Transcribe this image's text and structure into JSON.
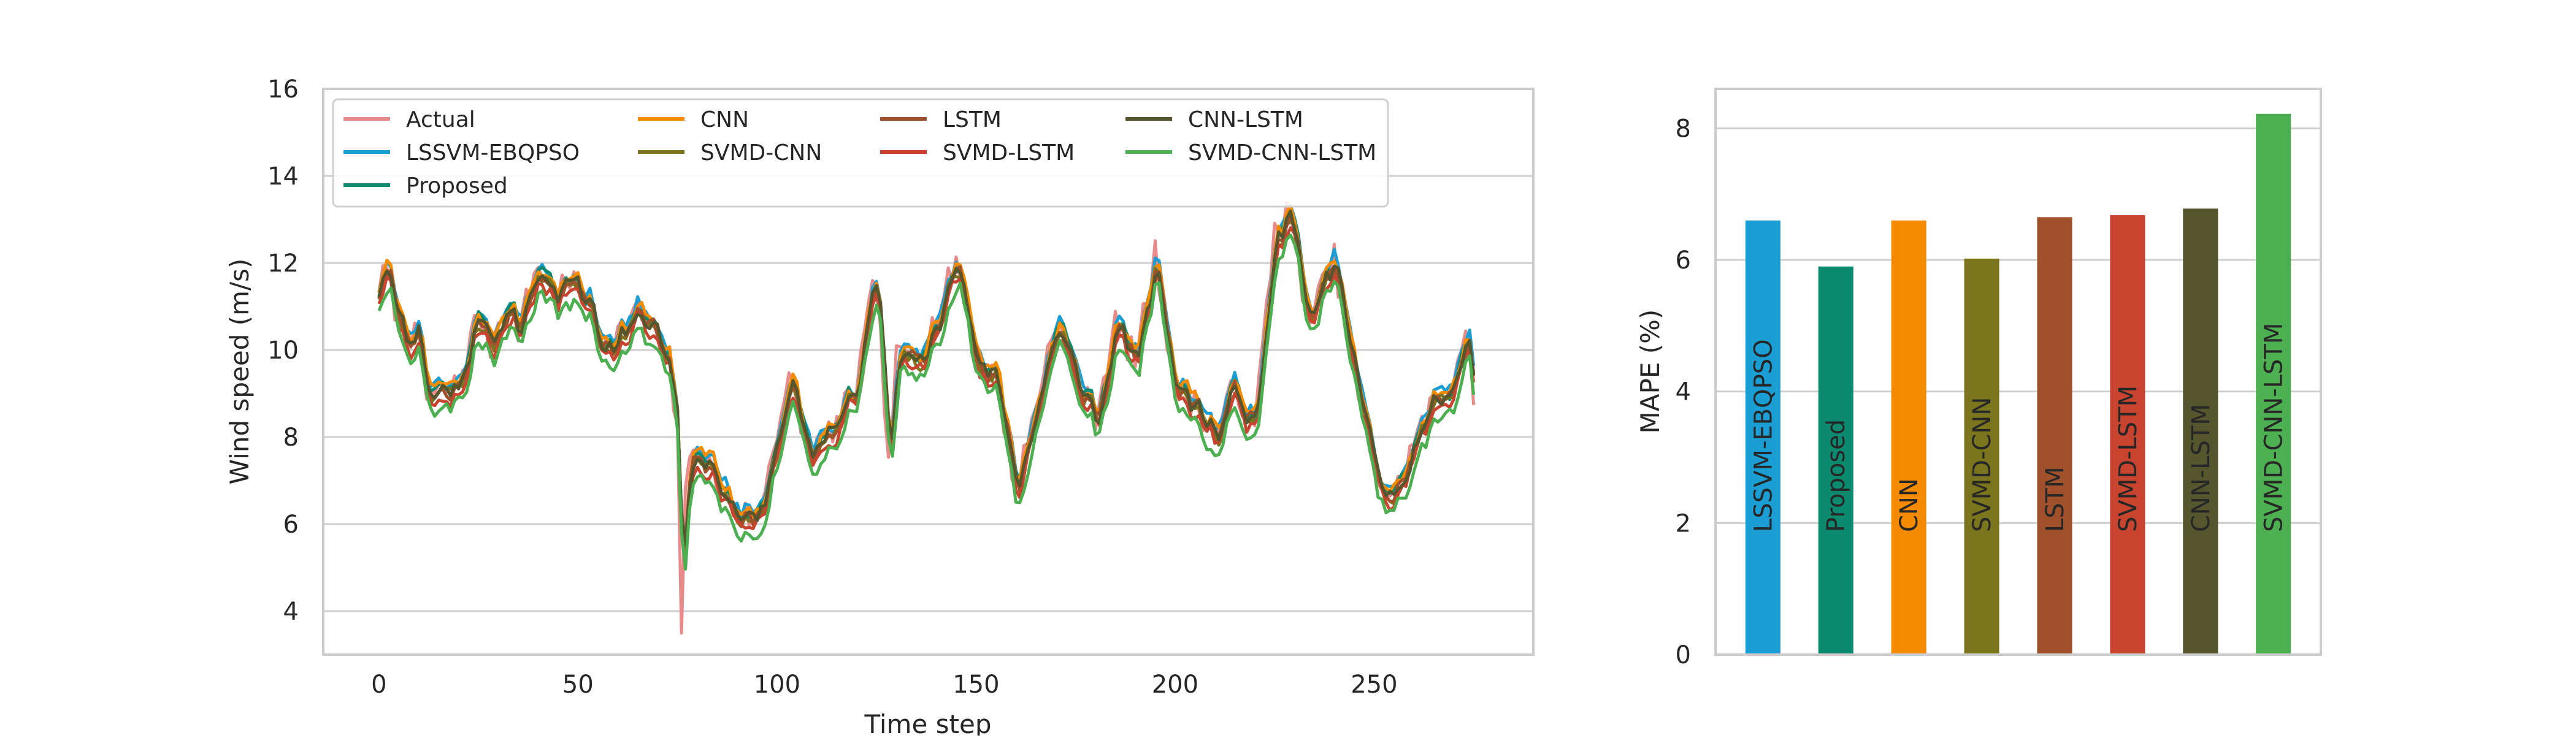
{
  "chart_data": [
    {
      "type": "line",
      "xlabel": "Time step",
      "ylabel": "Wind speed (m/s)",
      "xlim": [
        -14,
        290
      ],
      "ylim": [
        3.0,
        16.0
      ],
      "xticks": [
        0,
        50,
        100,
        150,
        200,
        250
      ],
      "yticks": [
        4,
        6,
        8,
        10,
        12,
        14,
        16
      ],
      "grid": "horizontal",
      "legend": "top-left",
      "x_range": [
        0,
        275
      ],
      "anchor_x": [
        0,
        2,
        5,
        10,
        12,
        15,
        20,
        25,
        28,
        32,
        35,
        40,
        43,
        48,
        52,
        55,
        60,
        65,
        70,
        73,
        75,
        76,
        77,
        78,
        80,
        85,
        90,
        95,
        97,
        100,
        103,
        108,
        115,
        120,
        125,
        128,
        130,
        135,
        140,
        145,
        150,
        155,
        160,
        165,
        170,
        175,
        180,
        185,
        190,
        195,
        200,
        205,
        210,
        215,
        220,
        225,
        228,
        230,
        232,
        235,
        240,
        245,
        250,
        255,
        260,
        265,
        270,
        272,
        274,
        275
      ],
      "series": [
        {
          "name": "Actual",
          "color": "#e88a8a",
          "offset": 0.0,
          "values": [
            11.5,
            11.8,
            10.6,
            10.2,
            8.9,
            9.0,
            9.2,
            10.9,
            10.1,
            11.2,
            10.5,
            12.0,
            11.4,
            11.5,
            11.3,
            10.2,
            10.4,
            10.9,
            10.3,
            9.5,
            8.0,
            3.7,
            7.0,
            7.2,
            7.9,
            6.9,
            6.3,
            6.1,
            6.9,
            8.2,
            9.3,
            7.6,
            8.3,
            9.2,
            11.8,
            7.2,
            9.8,
            10.0,
            10.7,
            12.1,
            9.8,
            9.4,
            6.8,
            8.7,
            10.8,
            9.3,
            8.5,
            10.6,
            9.8,
            12.2,
            9.1,
            8.8,
            8.0,
            9.2,
            8.2,
            12.8,
            13.1,
            12.8,
            10.9,
            11.0,
            12.1,
            9.4,
            7.2,
            6.6,
            7.9,
            8.8,
            9.4,
            10.2,
            10.4,
            8.5
          ]
        },
        {
          "name": "LSSVM-EBQPSO",
          "color": "#1a9ed4",
          "offset": 0.12
        },
        {
          "name": "Proposed",
          "color": "#0b8a6f",
          "offset": 0.0
        },
        {
          "name": "CNN",
          "color": "#f58b00",
          "offset": 0.08
        },
        {
          "name": "SVMD-CNN",
          "color": "#7b761e",
          "offset": -0.12
        },
        {
          "name": "LSTM",
          "color": "#a0502a",
          "offset": -0.08
        },
        {
          "name": "SVMD-LSTM",
          "color": "#c8442f",
          "offset": -0.25
        },
        {
          "name": "CNN-LSTM",
          "color": "#55552e",
          "offset": -0.05
        },
        {
          "name": "SVMD-CNN-LSTM",
          "color": "#4caf50",
          "offset": -0.45
        }
      ]
    },
    {
      "type": "bar",
      "ylabel": "MAPE (%)",
      "ylim": [
        0,
        8.6
      ],
      "yticks": [
        0,
        2,
        4,
        6,
        8
      ],
      "grid": "horizontal",
      "categories": [
        "LSSVM-EBQPSO",
        "Proposed",
        "CNN",
        "SVMD-CNN",
        "LSTM",
        "SVMD-LSTM",
        "CNN-LSTM",
        "SVMD-CNN-LSTM"
      ],
      "values": [
        6.6,
        5.9,
        6.6,
        6.02,
        6.65,
        6.68,
        6.78,
        8.22
      ],
      "colors": [
        "#1a9ed4",
        "#0b8a6f",
        "#f58b00",
        "#7b761e",
        "#a0502a",
        "#c8442f",
        "#55552e",
        "#4caf50"
      ]
    }
  ]
}
